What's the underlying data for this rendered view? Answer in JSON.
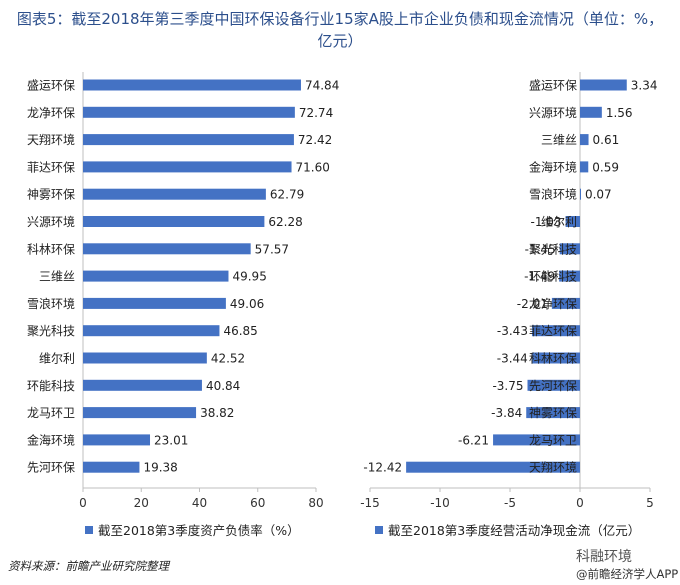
{
  "title": "图表5：截至2018年第三季度中国环保设备行业15家A股上市企业负债和现金流情况（单位：%，亿元）",
  "source": "资料来源：前瞻产业研究院整理",
  "watermark_line1": "科融环境",
  "watermark_line2": "@前瞻经济学人APP",
  "colors": {
    "bar": "#4472c4",
    "axis": "#bfbfbf",
    "title": "#2c4f8c"
  },
  "chart_data": [
    {
      "type": "bar",
      "orientation": "horizontal",
      "categories": [
        "盛运环保",
        "龙净环保",
        "天翔环境",
        "菲达环保",
        "神雾环保",
        "兴源环境",
        "科林环保",
        "三维丝",
        "雪浪环境",
        "聚光科技",
        "维尔利",
        "环能科技",
        "龙马环卫",
        "金海环境",
        "先河环保"
      ],
      "values": [
        74.84,
        72.74,
        72.42,
        71.6,
        62.79,
        62.28,
        57.57,
        49.95,
        49.06,
        46.85,
        42.52,
        40.84,
        38.82,
        23.01,
        19.38
      ],
      "value_labels": [
        "74.84",
        "72.74",
        "72.42",
        "71.60",
        "62.79",
        "62.28",
        "57.57",
        "49.95",
        "49.06",
        "46.85",
        "42.52",
        "40.84",
        "38.82",
        "23.01",
        "19.38"
      ],
      "xlim": [
        0,
        80
      ],
      "xticks": [
        "0",
        "20",
        "40",
        "60",
        "80"
      ],
      "legend": "截至2018第3季度资产负债率（%）"
    },
    {
      "type": "bar",
      "orientation": "horizontal",
      "categories": [
        "盛运环保",
        "兴源环境",
        "三维丝",
        "金海环境",
        "雪浪环境",
        "维尔利",
        "聚光科技",
        "环能科技",
        "龙净环保",
        "菲达环保",
        "科林环保",
        "先河环保",
        "神雾环保",
        "龙马环卫",
        "天翔环境"
      ],
      "values": [
        3.34,
        1.56,
        0.61,
        0.59,
        0.07,
        -1.03,
        -1.45,
        -1.49,
        -2.01,
        -3.43,
        -3.44,
        -3.75,
        -3.84,
        -6.21,
        -12.42
      ],
      "value_labels": [
        "3.34",
        "1.56",
        "0.61",
        "0.59",
        "0.07",
        "-1.03",
        "-1.45",
        "-1.49",
        "-2.01",
        "-3.43",
        "-3.44",
        "-3.75",
        "-3.84",
        "-6.21",
        "-12.42"
      ],
      "xlim": [
        -15,
        5
      ],
      "xticks": [
        "-15",
        "-10",
        "-5",
        "0",
        "5"
      ],
      "legend": "截至2018第3季度经营活动净现金流（亿元）"
    }
  ]
}
